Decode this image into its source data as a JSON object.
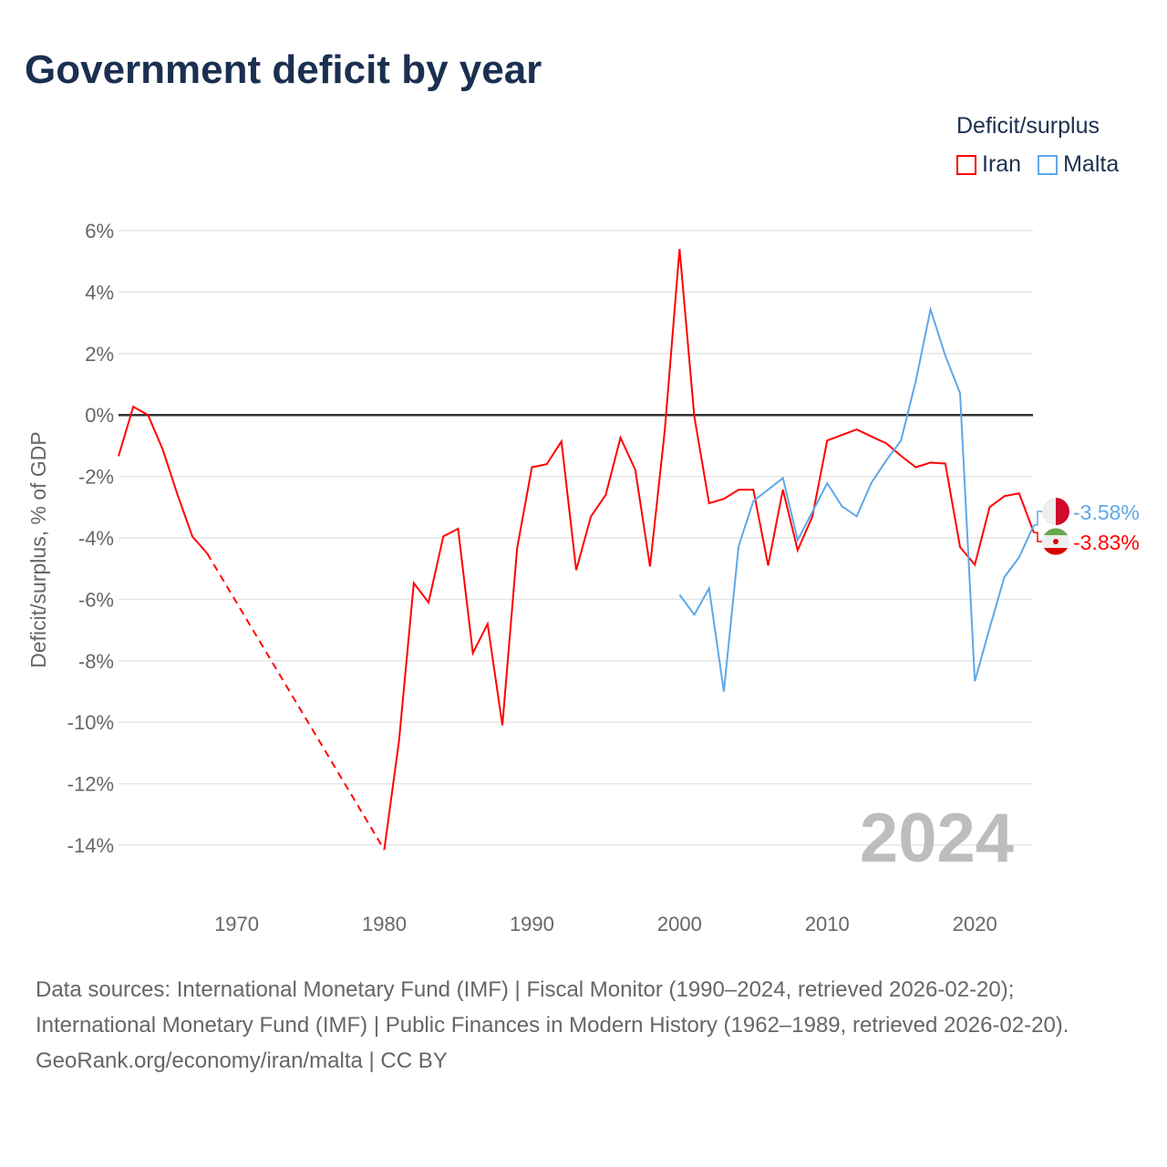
{
  "title": "Government deficit by year",
  "footer": {
    "sources": "Data sources: International Monetary Fund (IMF) | Fiscal Monitor (1990–2024, retrieved 2026-02-20); International Monetary Fund (IMF) | Public Finances in Modern History (1962–1989, retrieved 2026-02-20).",
    "credit": "GeoRank.org/economy/iran/malta | CC BY"
  },
  "chart_data": {
    "type": "line",
    "title": "Government deficit by year",
    "xlabel": "",
    "ylabel": "Deficit/surplus, % of GDP",
    "xlim": [
      1962,
      2024
    ],
    "ylim": [
      -14,
      6
    ],
    "yticks": [
      6,
      4,
      2,
      0,
      -2,
      -4,
      -6,
      -8,
      -10,
      -12,
      -14
    ],
    "ytick_labels": [
      "6%",
      "4%",
      "2%",
      "0%",
      "-2%",
      "-4%",
      "-6%",
      "-8%",
      "-10%",
      "-12%",
      "-14%"
    ],
    "xticks": [
      1970,
      1980,
      1990,
      2000,
      2010,
      2020
    ],
    "xtick_labels": [
      "1970",
      "1980",
      "1990",
      "2000",
      "2010",
      "2020"
    ],
    "legend_title": "Deficit/surplus",
    "legend_position": "top-right",
    "year_watermark": "2024",
    "grid": true,
    "series": [
      {
        "name": "Iran",
        "color": "#ff0000",
        "end_label": "-3.83%",
        "gap": [
          1968,
          1980
        ],
        "x": [
          1962,
          1963,
          1964,
          1965,
          1966,
          1967,
          1968,
          1980,
          1981,
          1982,
          1983,
          1984,
          1985,
          1986,
          1987,
          1988,
          1989,
          1990,
          1991,
          1992,
          1993,
          1994,
          1995,
          1996,
          1997,
          1998,
          1999,
          2000,
          2001,
          2002,
          2003,
          2004,
          2005,
          2006,
          2007,
          2008,
          2009,
          2010,
          2011,
          2012,
          2013,
          2014,
          2015,
          2016,
          2017,
          2018,
          2019,
          2020,
          2021,
          2022,
          2023,
          2024
        ],
        "y": [
          -1.34,
          0.27,
          0,
          -1.13,
          -2.6,
          -3.95,
          -4.5,
          -14.15,
          -10.6,
          -5.47,
          -6.1,
          -3.95,
          -3.7,
          -7.75,
          -6.8,
          -10.1,
          -4.33,
          -1.7,
          -1.6,
          -0.86,
          -5.05,
          -3.3,
          -2.6,
          -0.74,
          -1.78,
          -4.93,
          -0.5,
          5.4,
          -0.05,
          -2.87,
          -2.73,
          -2.43,
          -2.43,
          -4.9,
          -2.43,
          -4.4,
          -3.3,
          -0.83,
          -0.65,
          -0.47,
          -0.7,
          -0.92,
          -1.33,
          -1.7,
          -1.55,
          -1.58,
          -4.3,
          -4.87,
          -3.0,
          -2.64,
          -2.55,
          -3.83
        ]
      },
      {
        "name": "Malta",
        "color": "#5fa8e8",
        "end_label": "-3.58%",
        "x": [
          2000,
          2001,
          2002,
          2003,
          2004,
          2005,
          2006,
          2007,
          2008,
          2009,
          2010,
          2011,
          2012,
          2013,
          2014,
          2015,
          2016,
          2017,
          2018,
          2019,
          2020,
          2021,
          2022,
          2023,
          2024
        ],
        "y": [
          -5.85,
          -6.5,
          -5.64,
          -9.0,
          -4.27,
          -2.8,
          -2.43,
          -2.05,
          -4.07,
          -3.15,
          -2.22,
          -2.97,
          -3.3,
          -2.2,
          -1.48,
          -0.83,
          1.1,
          3.44,
          1.93,
          0.71,
          -8.67,
          -6.94,
          -5.28,
          -4.63,
          -3.58
        ]
      }
    ]
  }
}
